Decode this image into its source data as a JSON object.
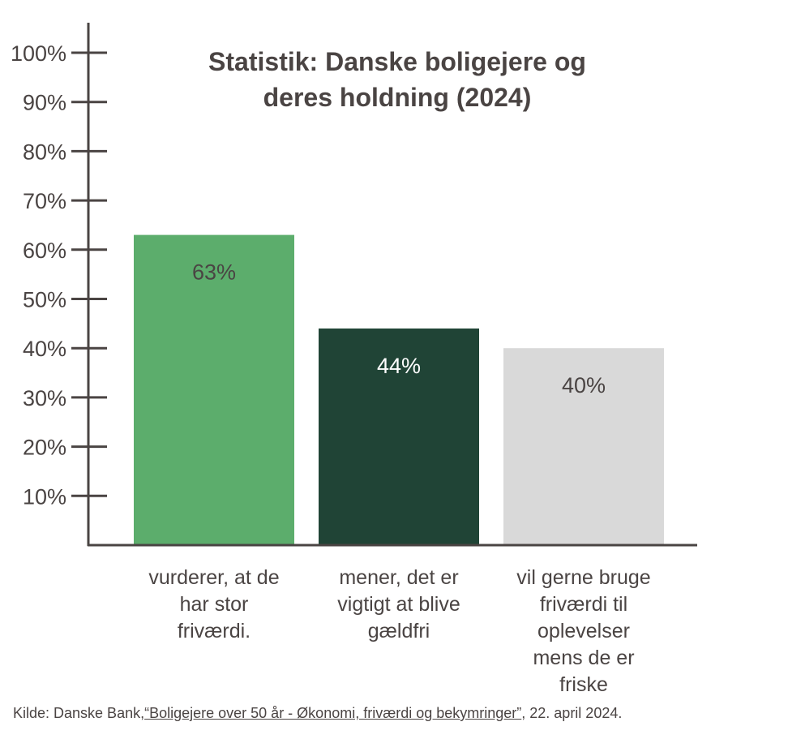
{
  "chart_data": {
    "type": "bar",
    "title_lines": [
      "Statistik: Danske boligejere og",
      "deres holdning (2024)"
    ],
    "categories": [
      [
        "vurderer, at de",
        "har stor",
        "friværdi."
      ],
      [
        "mener, det er",
        "vigtigt at blive",
        "gældfri"
      ],
      [
        "vil gerne bruge",
        "friværdi til",
        "oplevelser",
        "mens de er",
        "friske"
      ]
    ],
    "values": [
      63,
      44,
      40
    ],
    "value_labels": [
      "63%",
      "44%",
      "40%"
    ],
    "colors": [
      "#5cad6c",
      "#204436",
      "#d9d9d9"
    ],
    "label_colors": [
      "#4a4443",
      "#ffffff",
      "#4a4443"
    ],
    "yticks": [
      10,
      20,
      30,
      40,
      50,
      60,
      70,
      80,
      90,
      100
    ],
    "ytick_labels": [
      "10%",
      "20%",
      "30%",
      "40%",
      "50%",
      "60%",
      "70%",
      "80%",
      "90%",
      "100%"
    ],
    "ylim": [
      0,
      105
    ],
    "grid": false,
    "axis_color": "#4a4443"
  },
  "source": {
    "prefix": "Kilde: Danske Bank,",
    "link_text": "“Boligejere over 50 år - Økonomi, friværdi og bekymringer”",
    "suffix": ", 22. april 2024."
  }
}
